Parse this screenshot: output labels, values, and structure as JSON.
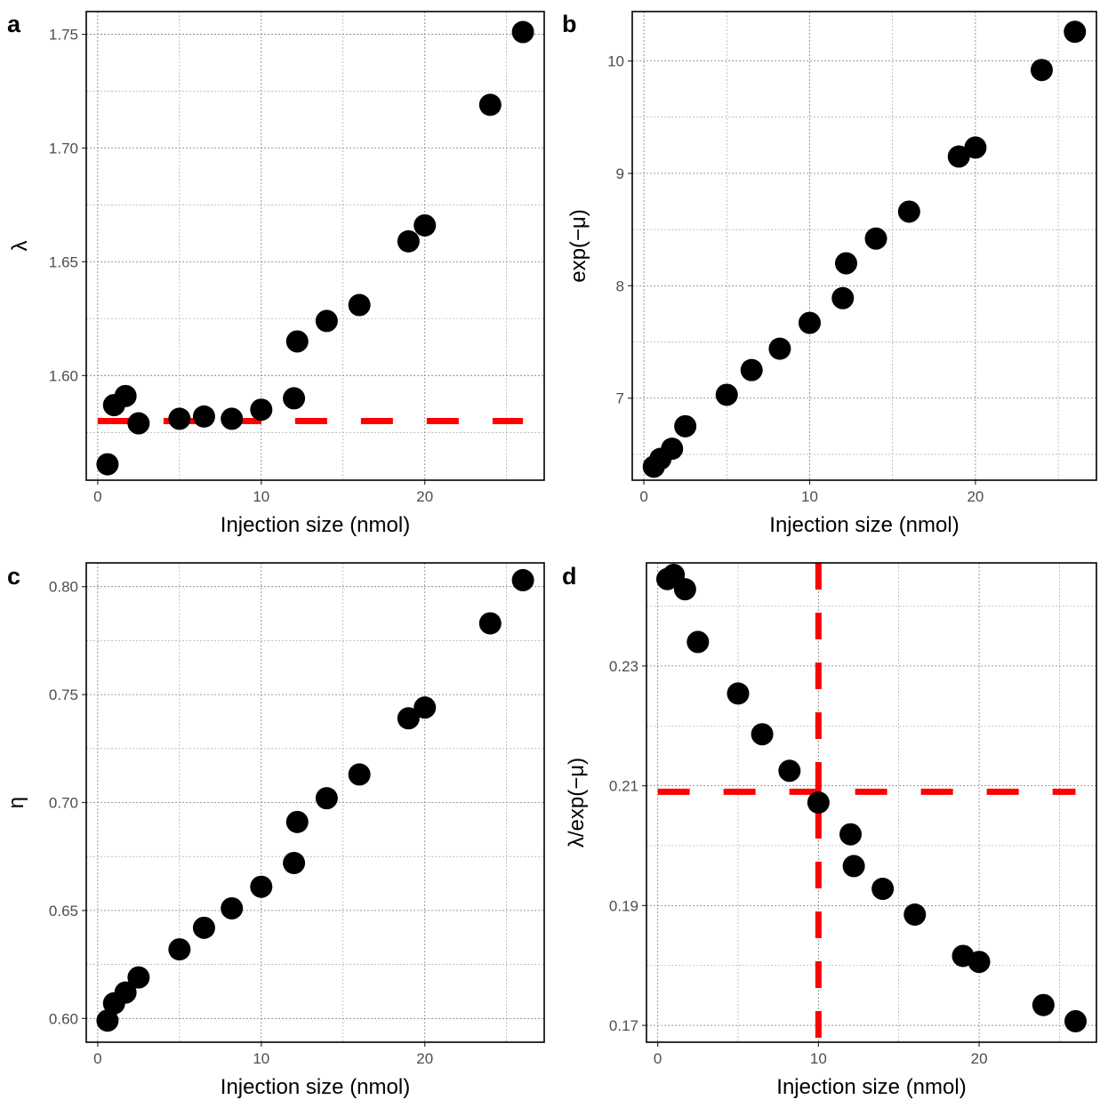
{
  "colors": {
    "point": "#000000",
    "reference": "#ff0000",
    "grid": "#7f7f7f",
    "tick_text": "#4d4d4d"
  },
  "chart_data": [
    {
      "panel": "a",
      "type": "scatter",
      "xlabel": "Injection size (nmol)",
      "ylabel": "λ",
      "xlim": [
        -0.7,
        27.3
      ],
      "ylim": [
        1.554,
        1.76
      ],
      "xticks": [
        0,
        10,
        20
      ],
      "xtick_labels": [
        "0",
        "10",
        "20"
      ],
      "yticks": [
        1.6,
        1.65,
        1.7,
        1.75
      ],
      "ytick_labels": [
        "1.60",
        "1.65",
        "1.70",
        "1.75"
      ],
      "x": [
        0.6,
        1.0,
        1.7,
        2.5,
        5.0,
        6.5,
        8.2,
        10.0,
        12.0,
        12.2,
        14.0,
        16.0,
        19.0,
        20.0,
        24.0,
        26.0
      ],
      "y": [
        1.561,
        1.587,
        1.591,
        1.579,
        1.581,
        1.582,
        1.581,
        1.585,
        1.59,
        1.615,
        1.624,
        1.631,
        1.659,
        1.666,
        1.719,
        1.751
      ],
      "hlines": [
        1.58
      ],
      "vlines": []
    },
    {
      "panel": "b",
      "type": "scatter",
      "xlabel": "Injection size (nmol)",
      "ylabel": "exp(−μ)",
      "xlim": [
        -0.7,
        27.3
      ],
      "ylim": [
        6.27,
        10.44
      ],
      "xticks": [
        0,
        10,
        20
      ],
      "xtick_labels": [
        "0",
        "10",
        "20"
      ],
      "yticks": [
        7,
        8,
        9,
        10
      ],
      "ytick_labels": [
        "7",
        "8",
        "9",
        "10"
      ],
      "x": [
        0.6,
        1.0,
        1.7,
        2.5,
        5.0,
        6.5,
        8.2,
        10.0,
        12.0,
        12.2,
        14.0,
        16.0,
        19.0,
        20.0,
        24.0,
        26.0
      ],
      "y": [
        6.39,
        6.46,
        6.55,
        6.75,
        7.03,
        7.25,
        7.44,
        7.67,
        7.89,
        8.2,
        8.42,
        8.66,
        9.15,
        9.23,
        9.92,
        10.26
      ],
      "hlines": [],
      "vlines": []
    },
    {
      "panel": "c",
      "type": "scatter",
      "xlabel": "Injection size (nmol)",
      "ylabel": "η",
      "xlim": [
        -0.7,
        27.3
      ],
      "ylim": [
        0.589,
        0.811
      ],
      "xticks": [
        0,
        10,
        20
      ],
      "xtick_labels": [
        "0",
        "10",
        "20"
      ],
      "yticks": [
        0.6,
        0.65,
        0.7,
        0.75,
        0.8
      ],
      "ytick_labels": [
        "0.60",
        "0.65",
        "0.70",
        "0.75",
        "0.80"
      ],
      "x": [
        0.6,
        1.0,
        1.7,
        2.5,
        5.0,
        6.5,
        8.2,
        10.0,
        12.0,
        12.2,
        14.0,
        16.0,
        19.0,
        20.0,
        24.0,
        26.0
      ],
      "y": [
        0.599,
        0.607,
        0.612,
        0.619,
        0.632,
        0.642,
        0.651,
        0.661,
        0.672,
        0.691,
        0.702,
        0.713,
        0.739,
        0.744,
        0.783,
        0.803
      ],
      "hlines": [],
      "vlines": []
    },
    {
      "panel": "d",
      "type": "scatter",
      "xlabel": "Injection size (nmol)",
      "ylabel": "λ/exp(−μ)",
      "xlim": [
        -0.7,
        27.3
      ],
      "ylim": [
        0.1672,
        0.2472
      ],
      "xticks": [
        0,
        10,
        20
      ],
      "xtick_labels": [
        "0",
        "10",
        "20"
      ],
      "yticks": [
        0.17,
        0.19,
        0.21,
        0.23
      ],
      "ytick_labels": [
        "0.17",
        "0.19",
        "0.21",
        "0.23"
      ],
      "x": [
        0.6,
        1.0,
        1.7,
        2.5,
        5.0,
        6.5,
        8.2,
        10.0,
        12.0,
        12.2,
        14.0,
        16.0,
        19.0,
        20.0,
        24.0,
        26.0
      ],
      "y": [
        0.2445,
        0.2452,
        0.2428,
        0.234,
        0.2254,
        0.2186,
        0.2125,
        0.2072,
        0.2019,
        0.1966,
        0.1928,
        0.1885,
        0.1816,
        0.1806,
        0.1734,
        0.1707
      ],
      "hlines": [
        0.209
      ],
      "vlines": [
        10.0
      ]
    }
  ]
}
